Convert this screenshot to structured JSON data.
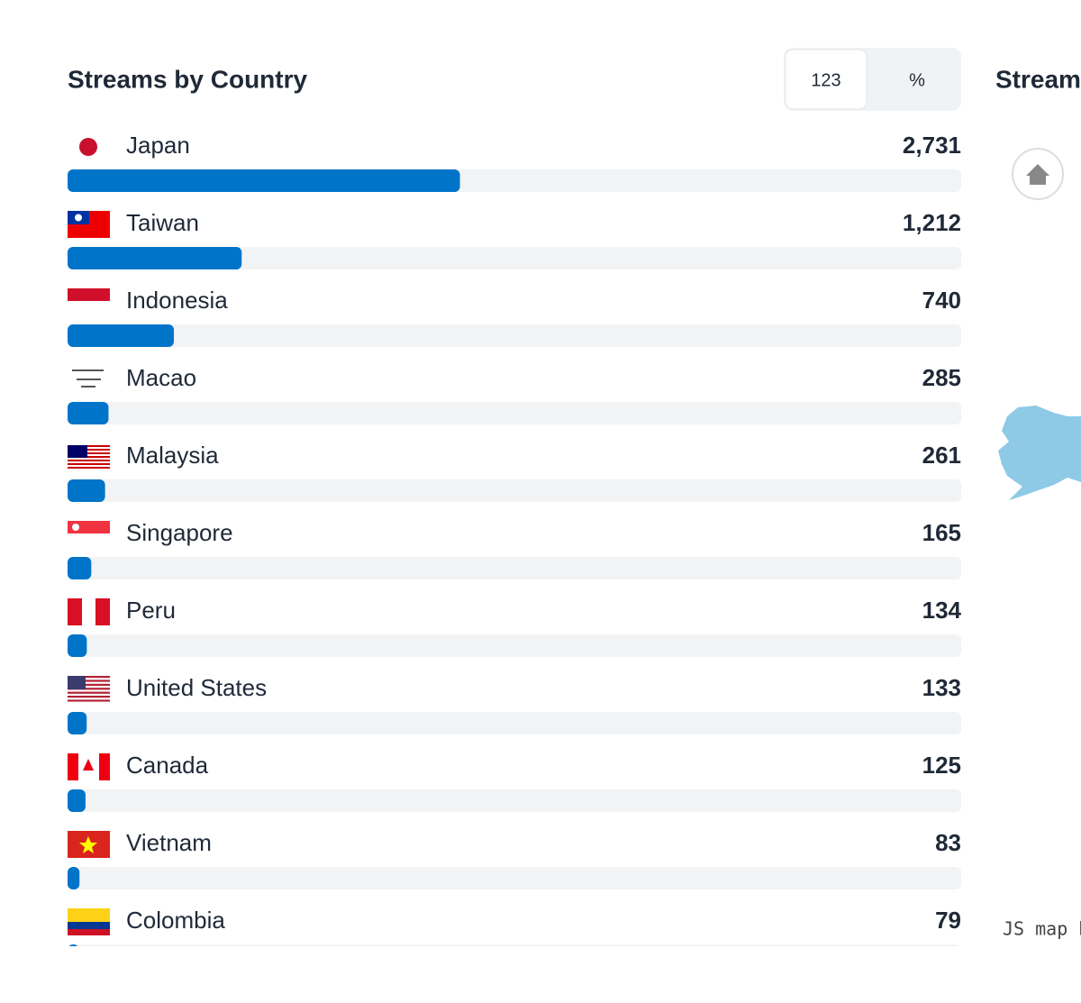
{
  "header": {
    "title": "Streams by Country",
    "toggle": [
      "123",
      "%"
    ]
  },
  "side_panel": {
    "title": "Streams",
    "credit": "JS map b"
  },
  "chart_data": {
    "type": "bar",
    "orientation": "horizontal",
    "categories": [
      "Japan",
      "Taiwan",
      "Indonesia",
      "Macao",
      "Malaysia",
      "Singapore",
      "Peru",
      "United States",
      "Canada",
      "Vietnam",
      "Colombia"
    ],
    "values": [
      2731,
      1212,
      740,
      285,
      261,
      165,
      134,
      133,
      125,
      83,
      79
    ],
    "value_labels": [
      "2,731",
      "1,212",
      "740",
      "285",
      "261",
      "165",
      "134",
      "133",
      "125",
      "83",
      "79"
    ],
    "color": "#0074c8",
    "track_color": "#f2f3f5",
    "xlim": [
      0,
      6220
    ]
  }
}
